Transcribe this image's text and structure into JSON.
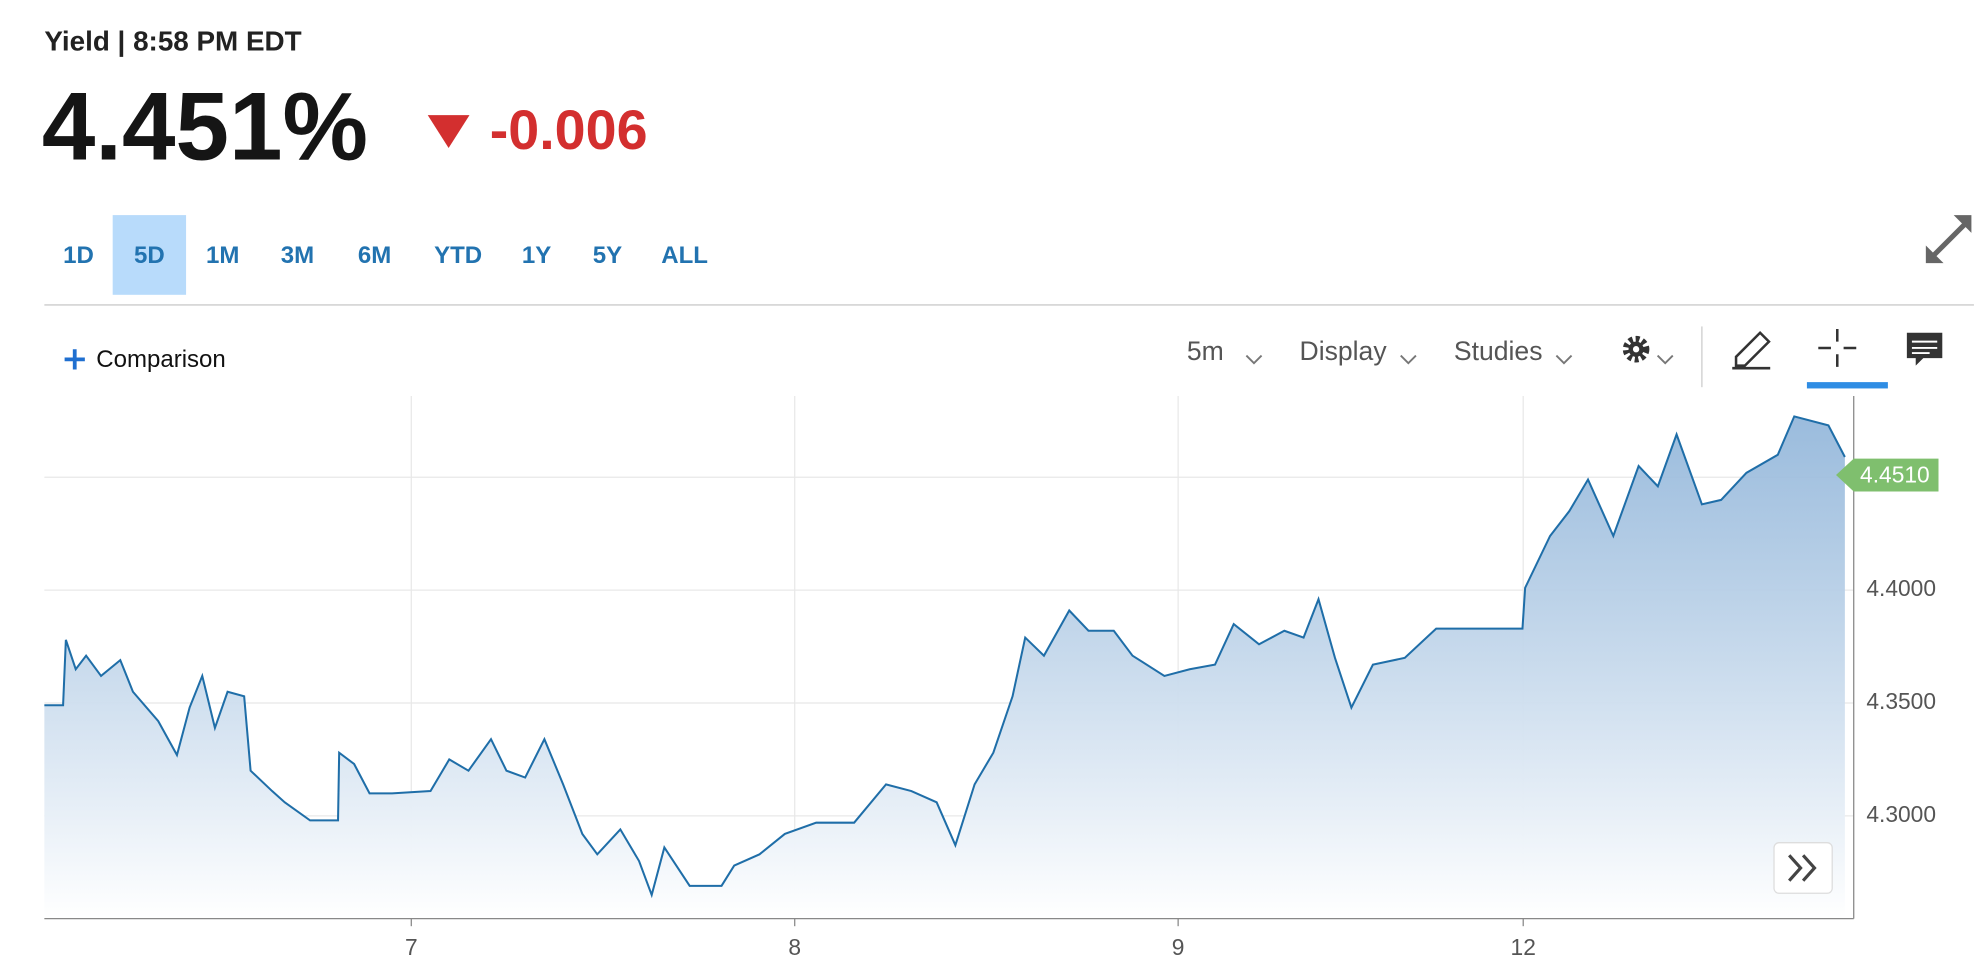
{
  "header": {
    "title": "Yield | 8:58 PM EDT",
    "price": "4.451%",
    "change": "-0.006"
  },
  "ranges": [
    "1D",
    "5D",
    "1M",
    "3M",
    "6M",
    "YTD",
    "1Y",
    "5Y",
    "ALL"
  ],
  "toolbar": {
    "comparison": "Comparison",
    "interval": "5m",
    "display": "Display",
    "studies": "Studies"
  },
  "chart_data": {
    "type": "area",
    "color": "#1f6ea8",
    "grid": true,
    "x": [
      0.043,
      0.092,
      0.099,
      0.125,
      0.152,
      0.191,
      0.241,
      0.274,
      0.34,
      0.389,
      0.422,
      0.455,
      0.488,
      0.521,
      0.564,
      0.581,
      0.637,
      0.67,
      0.736,
      0.809,
      0.812,
      0.851,
      0.891,
      0.95,
      1.05,
      1.099,
      1.149,
      1.208,
      1.248,
      1.297,
      1.347,
      1.396,
      1.446,
      1.485,
      1.545,
      1.594,
      1.627,
      1.66,
      1.726,
      1.809,
      1.842,
      1.908,
      1.974,
      2.056,
      2.155,
      2.238,
      2.304,
      2.37,
      2.419,
      2.469,
      2.518,
      2.568,
      2.601,
      2.65,
      2.716,
      2.766,
      2.832,
      2.881,
      2.964,
      3.03,
      3.096,
      3.145,
      3.211,
      3.277,
      3.327,
      3.366,
      3.409,
      3.452,
      3.508,
      3.591,
      3.673,
      3.756,
      3.898,
      3.905,
      3.97,
      4.02,
      4.069,
      4.135,
      4.201,
      4.251,
      4.3,
      4.366,
      4.416,
      4.482,
      4.564,
      4.607,
      4.696,
      4.739
    ],
    "values": [
      4.349,
      4.349,
      4.378,
      4.365,
      4.371,
      4.362,
      4.369,
      4.355,
      4.342,
      4.327,
      4.348,
      4.362,
      4.339,
      4.355,
      4.353,
      4.32,
      4.311,
      4.306,
      4.298,
      4.298,
      4.328,
      4.323,
      4.31,
      4.31,
      4.311,
      4.325,
      4.32,
      4.334,
      4.32,
      4.317,
      4.334,
      4.314,
      4.292,
      4.283,
      4.294,
      4.28,
      4.265,
      4.286,
      4.269,
      4.269,
      4.278,
      4.283,
      4.292,
      4.297,
      4.297,
      4.314,
      4.311,
      4.306,
      4.287,
      4.314,
      4.328,
      4.353,
      4.379,
      4.371,
      4.391,
      4.382,
      4.382,
      4.371,
      4.362,
      4.365,
      4.367,
      4.385,
      4.376,
      4.382,
      4.379,
      4.396,
      4.37,
      4.348,
      4.367,
      4.37,
      4.383,
      4.383,
      4.383,
      4.401,
      4.424,
      4.435,
      4.449,
      4.424,
      4.455,
      4.446,
      4.469,
      4.438,
      4.44,
      4.452,
      4.46,
      4.477,
      4.473,
      4.459
    ],
    "xlim": [
      0.043,
      4.762
    ],
    "xticks": [
      {
        "value": 1,
        "label": "7"
      },
      {
        "value": 2,
        "label": "8"
      },
      {
        "value": 3,
        "label": "9"
      },
      {
        "value": 3.9,
        "label": "12"
      }
    ],
    "ylim": [
      4.2545,
      4.486
    ],
    "yticks": [
      {
        "value": 4.3,
        "label": "4.3000"
      },
      {
        "value": 4.35,
        "label": "4.3500"
      },
      {
        "value": 4.4,
        "label": "4.4000"
      },
      {
        "value": 4.45,
        "label": null
      }
    ],
    "last_price": {
      "value": 4.451,
      "label": "4.4510"
    }
  }
}
